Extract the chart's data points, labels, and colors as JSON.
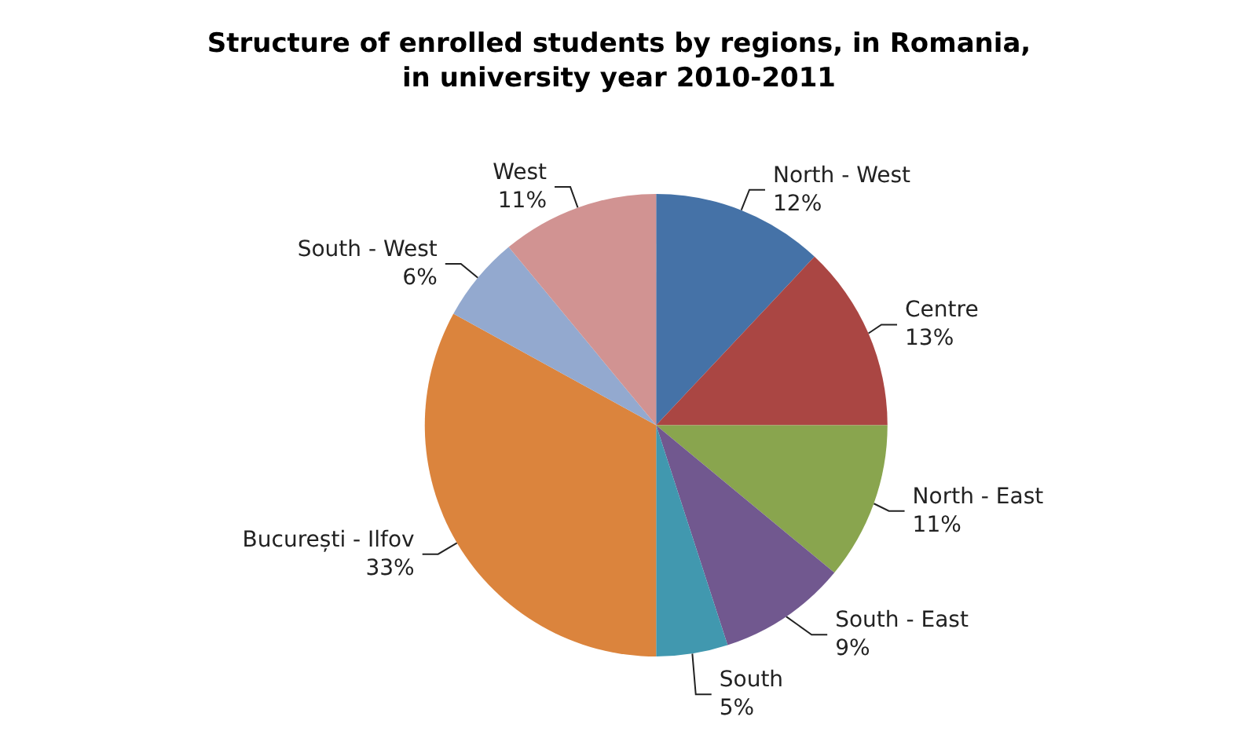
{
  "chart_data": {
    "type": "pie",
    "title": "Structure of enrolled students by regions, in Romania,\nin university year 2010-2011",
    "categories": [
      "North - West",
      "Centre",
      "North - East",
      "South - East",
      "South",
      "București - Ilfov",
      "South - West",
      "West"
    ],
    "values": [
      12,
      13,
      11,
      9,
      5,
      33,
      6,
      11
    ],
    "value_labels": [
      "12%",
      "13%",
      "11%",
      "9%",
      "5%",
      "33%",
      "6%",
      "11%"
    ],
    "colors": [
      "#4572a7",
      "#aa4643",
      "#89a54e",
      "#71588f",
      "#4198af",
      "#db843d",
      "#93a9cf",
      "#d19392"
    ]
  }
}
